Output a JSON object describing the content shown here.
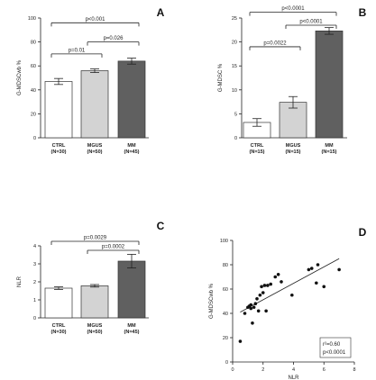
{
  "chart_data": [
    {
      "panel": "A",
      "type": "bar",
      "ylabel": "G-MDSCwb %",
      "ylim": [
        0,
        100
      ],
      "yticks": [
        0,
        20,
        40,
        60,
        80,
        100
      ],
      "categories": [
        "CTRL",
        "MGUS",
        "MM"
      ],
      "category_n": [
        "(N=30)",
        "(N=50)",
        "(N=45)"
      ],
      "values": [
        47,
        56,
        64
      ],
      "errors": [
        2.5,
        1.5,
        2.5
      ],
      "colors": [
        "#ffffff",
        "#d3d3d3",
        "#606060"
      ],
      "comparisons": [
        {
          "from": 0,
          "to": 1,
          "label": "p=0.01",
          "y": 70
        },
        {
          "from": 1,
          "to": 2,
          "label": "p=0.026",
          "y": 80
        },
        {
          "from": 0,
          "to": 2,
          "label": "p<0.001",
          "y": 96
        }
      ]
    },
    {
      "panel": "B",
      "type": "bar",
      "ylabel": "G-MDSC %",
      "ylim": [
        0,
        25
      ],
      "yticks": [
        0,
        5,
        10,
        15,
        20,
        25
      ],
      "categories": [
        "CTRL",
        "MGUS",
        "MM"
      ],
      "category_n": [
        "(N=15)",
        "(N=15)",
        "(N=15)"
      ],
      "values": [
        3.2,
        7.4,
        22.3
      ],
      "errors": [
        0.8,
        1.2,
        0.7
      ],
      "colors": [
        "#ffffff",
        "#d3d3d3",
        "#606060"
      ],
      "comparisons": [
        {
          "from": 0,
          "to": 1,
          "label": "p=0.0022",
          "y": 19
        },
        {
          "from": 1,
          "to": 2,
          "label": "p<0.0001",
          "y": 23.5
        },
        {
          "from": 0,
          "to": 2,
          "label": "p<0.0001",
          "y": 26.2
        }
      ]
    },
    {
      "panel": "C",
      "type": "bar",
      "ylabel": "NLR",
      "ylim": [
        0,
        4
      ],
      "yticks": [
        0,
        1,
        2,
        3,
        4
      ],
      "categories": [
        "CTRL",
        "MGUS",
        "MM"
      ],
      "category_n": [
        "(N=30)",
        "(N=50)",
        "(N=45)"
      ],
      "values": [
        1.65,
        1.78,
        3.15
      ],
      "errors": [
        0.07,
        0.07,
        0.38
      ],
      "colors": [
        "#ffffff",
        "#d3d3d3",
        "#606060"
      ],
      "comparisons": [
        {
          "from": 1,
          "to": 2,
          "label": "p=0.0002",
          "y": 3.75
        },
        {
          "from": 0,
          "to": 2,
          "label": "p=0.0029",
          "y": 4.25
        }
      ]
    },
    {
      "panel": "D",
      "type": "scatter",
      "xlabel": "NLR",
      "ylabel": "G-MDSCwb %",
      "xlim": [
        0,
        8
      ],
      "ylim": [
        0,
        100
      ],
      "xticks": [
        0,
        2,
        4,
        6,
        8
      ],
      "yticks": [
        0,
        20,
        40,
        60,
        80,
        100
      ],
      "points": [
        [
          0.5,
          17
        ],
        [
          0.8,
          40
        ],
        [
          1.0,
          45
        ],
        [
          1.1,
          46
        ],
        [
          1.2,
          47
        ],
        [
          1.2,
          44
        ],
        [
          1.3,
          32
        ],
        [
          1.4,
          45
        ],
        [
          1.5,
          48
        ],
        [
          1.6,
          52
        ],
        [
          1.7,
          42
        ],
        [
          1.8,
          55
        ],
        [
          1.9,
          62
        ],
        [
          2.0,
          57
        ],
        [
          2.1,
          63
        ],
        [
          2.2,
          42
        ],
        [
          2.3,
          63
        ],
        [
          2.5,
          64
        ],
        [
          2.8,
          70
        ],
        [
          3.0,
          72
        ],
        [
          3.2,
          66
        ],
        [
          3.9,
          55
        ],
        [
          5.0,
          76
        ],
        [
          5.2,
          77
        ],
        [
          5.5,
          65
        ],
        [
          5.6,
          80
        ],
        [
          6.0,
          62
        ],
        [
          7.0,
          76
        ]
      ],
      "fit": {
        "x0": 0.5,
        "y0": 41,
        "x1": 7.0,
        "y1": 85
      },
      "r2_label": "r²=0.60",
      "p_label": "p<0.0001"
    }
  ],
  "panel_labels": [
    "A",
    "B",
    "C",
    "D"
  ]
}
